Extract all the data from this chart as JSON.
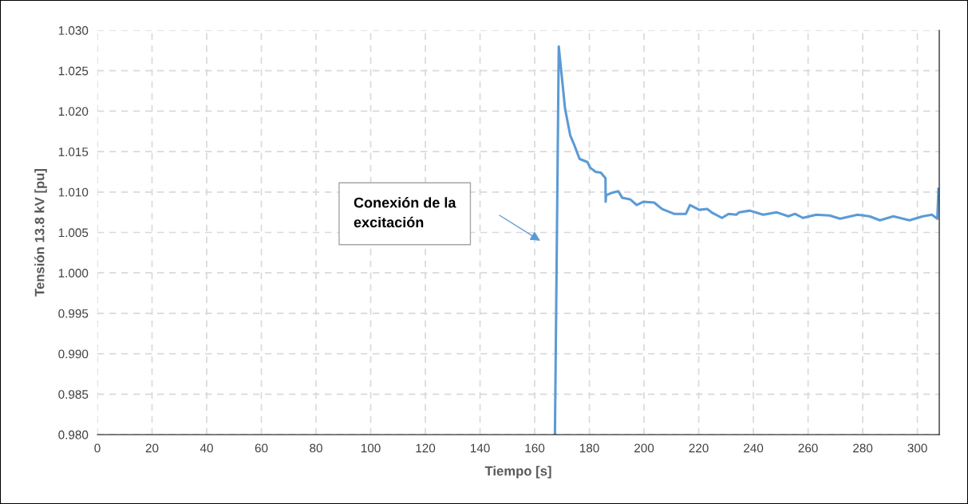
{
  "chart_data": {
    "type": "line",
    "xlabel": "Tiempo [s]",
    "ylabel": "Tensión 13.8 kV [pu]",
    "xlim": [
      0,
      308
    ],
    "ylim": [
      0.98,
      1.03
    ],
    "xticks": [
      0,
      20,
      40,
      60,
      80,
      100,
      120,
      140,
      160,
      180,
      200,
      220,
      240,
      260,
      280,
      300
    ],
    "yticks": [
      {
        "value": 0.98,
        "label": "0.980"
      },
      {
        "value": 0.985,
        "label": "0.985"
      },
      {
        "value": 0.99,
        "label": "0.990"
      },
      {
        "value": 0.995,
        "label": "0.995"
      },
      {
        "value": 1.0,
        "label": "1.000"
      },
      {
        "value": 1.005,
        "label": "1.005"
      },
      {
        "value": 1.01,
        "label": "1.010"
      },
      {
        "value": 1.015,
        "label": "1.015"
      },
      {
        "value": 1.02,
        "label": "1.020"
      },
      {
        "value": 1.025,
        "label": "1.025"
      },
      {
        "value": 1.03,
        "label": "1.030"
      }
    ],
    "grid": true,
    "line_style": "solid",
    "marker": "none",
    "annotations": [
      "Conexión de la\nexcitación"
    ],
    "series": [
      {
        "color": "#5b9bd5",
        "x": [
          167.4,
          168.8,
          171.1,
          173.0,
          174.5,
          176.4,
          179.3,
          180.3,
          182.3,
          184.2,
          185.9,
          185.95,
          186.1,
          188.2,
          190.6,
          192.0,
          194.9,
          197.3,
          199.8,
          203.7,
          206.6,
          211.0,
          215.3,
          216.8,
          220.2,
          223.1,
          225.1,
          228.5,
          230.9,
          233.8,
          234.8,
          238.7,
          243.6,
          248.4,
          252.8,
          255.2,
          258.1,
          263.0,
          267.9,
          271.7,
          278.1,
          282.5,
          286.3,
          291.2,
          297.1,
          302.0,
          305.3,
          307.3,
          307.7
        ],
        "values": [
          0.98,
          1.028,
          1.0203,
          1.017,
          1.0158,
          1.0141,
          1.0137,
          1.013,
          1.0125,
          1.0124,
          1.0117,
          1.0088,
          1.0096,
          1.0099,
          1.0101,
          1.0093,
          1.0091,
          1.0084,
          1.0088,
          1.0087,
          1.0079,
          1.0073,
          1.0073,
          1.0084,
          1.0078,
          1.0079,
          1.0074,
          1.0068,
          1.0073,
          1.0072,
          1.0075,
          1.0077,
          1.0072,
          1.0075,
          1.007,
          1.0073,
          1.0068,
          1.0072,
          1.0071,
          1.0067,
          1.0072,
          1.007,
          1.0065,
          1.007,
          1.0065,
          1.007,
          1.0072,
          1.0067,
          1.0104
        ]
      }
    ]
  }
}
